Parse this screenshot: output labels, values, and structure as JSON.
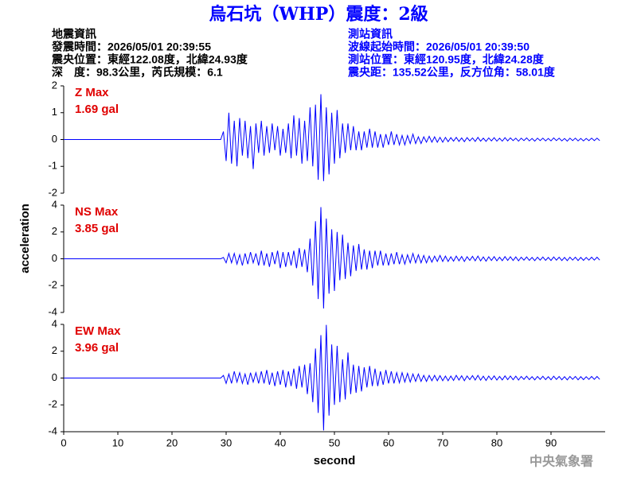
{
  "header": {
    "title": "烏石坑（WHP）震度：2級",
    "event": [
      "地震資訊",
      "發震時間：2026/05/01 20:39:55",
      "震央位置：東經122.08度，北緯24.93度",
      "深　度：98.3公里，芮氏規模：6.1"
    ],
    "station": [
      "測站資訊",
      "波線起始時間：2026/05/01 20:39:50",
      "測站位置：東經120.95度，北緯24.28度",
      "震央距：135.52公里，反方位角：58.01度"
    ],
    "footer": "中央氣象署"
  },
  "chart_data": [
    {
      "type": "line",
      "label": "Z Max",
      "max_label": "1.69 gal",
      "color": "#0000ff",
      "label_color": "#e00000",
      "xlim": [
        0,
        100
      ],
      "ylim": [
        -2,
        2
      ],
      "yticks": [
        -2,
        -1,
        0,
        1,
        2
      ],
      "x": [
        0,
        29,
        29.5,
        30,
        30.5,
        31,
        31.5,
        32,
        32.5,
        33,
        33.5,
        34,
        34.5,
        35,
        35.5,
        36,
        36.5,
        37,
        37.5,
        38,
        38.5,
        39,
        39.5,
        40,
        40.5,
        41,
        41.5,
        42,
        42.5,
        43,
        43.5,
        44,
        44.5,
        45,
        45.5,
        46,
        46.5,
        47,
        47.5,
        48,
        48.5,
        49,
        49.5,
        50,
        50.5,
        51,
        51.5,
        52,
        52.5,
        53,
        53.5,
        54,
        54.5,
        55,
        55.5,
        56,
        56.5,
        57,
        57.5,
        58,
        58.5,
        59,
        59.5,
        60,
        60.5,
        61,
        61.5,
        62,
        62.5,
        63,
        63.5,
        64,
        64.5,
        65,
        65.5,
        66,
        66.5,
        67,
        67.5,
        68,
        68.5,
        69,
        69.5,
        70,
        70.5,
        71,
        71.5,
        72,
        72.5,
        73,
        73.5,
        74,
        74.5,
        75,
        75.5,
        76,
        76.5,
        77,
        77.5,
        78,
        78.5,
        79,
        79.5,
        80,
        80.5,
        81,
        81.5,
        82,
        82.5,
        83,
        83.5,
        84,
        84.5,
        85,
        85.5,
        86,
        86.5,
        87,
        87.5,
        88,
        88.5,
        89,
        89.5,
        90,
        90.5,
        91,
        91.5,
        92,
        92.5,
        93,
        93.5,
        94,
        94.5,
        95,
        95.5,
        96,
        96.5,
        97,
        97.5,
        98,
        98.5,
        99
      ],
      "values": [
        0,
        0,
        0.3,
        -0.8,
        1.0,
        -0.9,
        0.7,
        -1.0,
        0.8,
        -0.6,
        0.7,
        -0.7,
        0.5,
        -1.1,
        0.6,
        -0.5,
        0.7,
        -0.6,
        0.5,
        -0.5,
        0.6,
        -0.4,
        0.5,
        -0.6,
        0.4,
        -0.5,
        0.6,
        -0.7,
        0.9,
        -0.6,
        0.8,
        -0.9,
        0.7,
        -0.8,
        1.2,
        -1.0,
        1.3,
        -1.5,
        1.69,
        -1.55,
        1.2,
        -1.3,
        1.0,
        -0.9,
        1.1,
        -0.7,
        0.6,
        -0.5,
        0.6,
        -0.4,
        0.5,
        -0.4,
        0.3,
        -0.4,
        0.3,
        -0.3,
        0.4,
        -0.3,
        0.3,
        -0.3,
        0.2,
        -0.3,
        0.2,
        -0.2,
        0.3,
        -0.2,
        0.2,
        -0.2,
        0.15,
        -0.2,
        0.15,
        -0.15,
        0.2,
        -0.15,
        0.1,
        -0.15,
        0.1,
        -0.1,
        0.12,
        -0.1,
        0.1,
        -0.1,
        0.08,
        -0.1,
        0.08,
        -0.08,
        0.07,
        -0.06,
        0.08,
        -0.07,
        0.06,
        -0.08,
        0.07,
        -0.05,
        0.06,
        -0.07,
        0.08,
        -0.06,
        0.05,
        -0.07,
        0.06,
        -0.05,
        0.07,
        -0.06,
        0.05,
        -0.06,
        0.07,
        -0.05,
        0.06,
        -0.04,
        0.05,
        -0.06,
        0.05,
        -0.04,
        0.06,
        -0.05,
        0.04,
        -0.06,
        0.05,
        -0.04,
        0.05,
        -0.05,
        0.04,
        -0.05,
        0.06,
        -0.04,
        0.05,
        -0.05,
        0.04,
        -0.06,
        0.05,
        -0.04,
        0.05,
        -0.05,
        0.04,
        -0.05,
        0.04,
        -0.04,
        0.05,
        -0.04,
        0.05,
        -0.04
      ]
    },
    {
      "type": "line",
      "label": "NS Max",
      "max_label": "3.85 gal",
      "color": "#0000ff",
      "label_color": "#e00000",
      "ylabel": "acceleration",
      "xlim": [
        0,
        100
      ],
      "ylim": [
        -4,
        4
      ],
      "yticks": [
        -4,
        -2,
        0,
        2,
        4
      ],
      "x": [
        0,
        29,
        29.5,
        30,
        30.5,
        31,
        31.5,
        32,
        32.5,
        33,
        33.5,
        34,
        34.5,
        35,
        35.5,
        36,
        36.5,
        37,
        37.5,
        38,
        38.5,
        39,
        39.5,
        40,
        40.5,
        41,
        41.5,
        42,
        42.5,
        43,
        43.5,
        44,
        44.5,
        45,
        45.5,
        46,
        46.5,
        47,
        47.5,
        48,
        48.5,
        49,
        49.5,
        50,
        50.5,
        51,
        51.5,
        52,
        52.5,
        53,
        53.5,
        54,
        54.5,
        55,
        55.5,
        56,
        56.5,
        57,
        57.5,
        58,
        58.5,
        59,
        59.5,
        60,
        60.5,
        61,
        61.5,
        62,
        62.5,
        63,
        63.5,
        64,
        64.5,
        65,
        65.5,
        66,
        66.5,
        67,
        67.5,
        68,
        68.5,
        69,
        69.5,
        70,
        70.5,
        71,
        71.5,
        72,
        72.5,
        73,
        73.5,
        74,
        74.5,
        75,
        75.5,
        76,
        76.5,
        77,
        77.5,
        78,
        78.5,
        79,
        79.5,
        80,
        80.5,
        81,
        81.5,
        82,
        82.5,
        83,
        83.5,
        84,
        84.5,
        85,
        85.5,
        86,
        86.5,
        87,
        87.5,
        88,
        88.5,
        89,
        89.5,
        90,
        90.5,
        91,
        91.5,
        92,
        92.5,
        93,
        93.5,
        94,
        94.5,
        95,
        95.5,
        96,
        96.5,
        97,
        97.5,
        98,
        98.5,
        99
      ],
      "values": [
        0,
        0,
        0.1,
        -0.3,
        0.4,
        -0.3,
        0.4,
        -0.4,
        0.3,
        -0.5,
        0.4,
        -0.4,
        0.5,
        -0.3,
        0.4,
        -0.5,
        0.6,
        -0.5,
        0.4,
        -0.6,
        0.5,
        -0.4,
        0.6,
        -0.7,
        0.5,
        -0.6,
        0.5,
        -0.5,
        0.6,
        -0.7,
        0.8,
        -0.6,
        0.7,
        -1.0,
        1.5,
        -2.0,
        2.8,
        -3.0,
        3.85,
        -3.7,
        3.0,
        -2.6,
        2.2,
        -2.4,
        2.0,
        -1.6,
        1.8,
        -1.5,
        1.2,
        -1.3,
        1.0,
        -0.9,
        1.1,
        -0.8,
        0.7,
        -0.8,
        0.6,
        -0.7,
        0.6,
        -0.5,
        0.6,
        -0.5,
        0.4,
        -0.5,
        0.4,
        -0.4,
        0.5,
        -0.4,
        0.3,
        -0.4,
        0.3,
        -0.3,
        0.4,
        -0.3,
        0.3,
        -0.3,
        0.25,
        -0.3,
        0.2,
        -0.25,
        0.2,
        -0.2,
        0.25,
        -0.2,
        0.2,
        -0.2,
        0.15,
        -0.18,
        0.2,
        -0.15,
        0.17,
        -0.2,
        0.15,
        -0.12,
        0.18,
        -0.15,
        0.2,
        -0.16,
        0.14,
        -0.18,
        0.15,
        -0.13,
        0.16,
        -0.15,
        0.12,
        -0.14,
        0.16,
        -0.12,
        0.15,
        -0.13,
        0.14,
        -0.15,
        0.12,
        -0.1,
        0.14,
        -0.12,
        0.1,
        -0.14,
        0.12,
        -0.1,
        0.13,
        -0.12,
        0.1,
        -0.13,
        0.14,
        -0.1,
        0.12,
        -0.13,
        0.1,
        -0.14,
        0.12,
        -0.1,
        0.12,
        -0.13,
        0.1,
        -0.12,
        0.1,
        -0.1,
        0.12,
        -0.1,
        0.12,
        -0.1
      ]
    },
    {
      "type": "line",
      "label": "EW Max",
      "max_label": "3.96 gal",
      "color": "#0000ff",
      "label_color": "#e00000",
      "xlabel": "second",
      "xlim": [
        0,
        100
      ],
      "ylim": [
        -4,
        4
      ],
      "yticks": [
        -4,
        -2,
        0,
        2,
        4
      ],
      "xticks": [
        0,
        10,
        20,
        30,
        40,
        50,
        60,
        70,
        80,
        90
      ],
      "x": [
        0,
        29,
        29.5,
        30,
        30.5,
        31,
        31.5,
        32,
        32.5,
        33,
        33.5,
        34,
        34.5,
        35,
        35.5,
        36,
        36.5,
        37,
        37.5,
        38,
        38.5,
        39,
        39.5,
        40,
        40.5,
        41,
        41.5,
        42,
        42.5,
        43,
        43.5,
        44,
        44.5,
        45,
        45.5,
        46,
        46.5,
        47,
        47.5,
        48,
        48.5,
        49,
        49.5,
        50,
        50.5,
        51,
        51.5,
        52,
        52.5,
        53,
        53.5,
        54,
        54.5,
        55,
        55.5,
        56,
        56.5,
        57,
        57.5,
        58,
        58.5,
        59,
        59.5,
        60,
        60.5,
        61,
        61.5,
        62,
        62.5,
        63,
        63.5,
        64,
        64.5,
        65,
        65.5,
        66,
        66.5,
        67,
        67.5,
        68,
        68.5,
        69,
        69.5,
        70,
        70.5,
        71,
        71.5,
        72,
        72.5,
        73,
        73.5,
        74,
        74.5,
        75,
        75.5,
        76,
        76.5,
        77,
        77.5,
        78,
        78.5,
        79,
        79.5,
        80,
        80.5,
        81,
        81.5,
        82,
        82.5,
        83,
        83.5,
        84,
        84.5,
        85,
        85.5,
        86,
        86.5,
        87,
        87.5,
        88,
        88.5,
        89,
        89.5,
        90,
        90.5,
        91,
        91.5,
        92,
        92.5,
        93,
        93.5,
        94,
        94.5,
        95,
        95.5,
        96,
        96.5,
        97,
        97.5,
        98,
        98.5,
        99
      ],
      "values": [
        0,
        0,
        0.2,
        -0.4,
        0.3,
        -0.4,
        0.5,
        -0.3,
        0.4,
        -0.4,
        0.3,
        -0.5,
        0.4,
        -0.3,
        0.4,
        -0.4,
        0.5,
        -0.4,
        0.6,
        -0.5,
        0.4,
        -0.6,
        0.5,
        -0.5,
        0.6,
        -0.7,
        0.5,
        -0.6,
        0.7,
        -0.8,
        0.9,
        -0.7,
        1.0,
        -1.2,
        1.1,
        -1.8,
        2.2,
        -2.6,
        3.2,
        -3.9,
        3.96,
        -2.8,
        2.5,
        -2.0,
        2.4,
        -1.8,
        1.4,
        -1.6,
        1.9,
        -1.2,
        1.0,
        -1.1,
        0.9,
        -1.0,
        0.8,
        -0.7,
        0.9,
        -0.6,
        0.7,
        -0.6,
        0.5,
        -0.5,
        0.6,
        -0.4,
        0.5,
        -0.4,
        0.4,
        -0.35,
        0.4,
        -0.3,
        0.35,
        -0.3,
        0.3,
        -0.25,
        0.3,
        -0.25,
        0.2,
        -0.25,
        0.2,
        -0.2,
        0.2,
        -0.2,
        0.18,
        -0.2,
        0.15,
        -0.2,
        0.15,
        -0.18,
        0.2,
        -0.15,
        0.17,
        -0.2,
        0.15,
        -0.12,
        0.18,
        -0.15,
        0.2,
        -0.16,
        0.14,
        -0.18,
        0.15,
        -0.13,
        0.16,
        -0.15,
        0.12,
        -0.14,
        0.16,
        -0.12,
        0.15,
        -0.13,
        0.14,
        -0.15,
        0.12,
        -0.1,
        0.14,
        -0.12,
        0.1,
        -0.14,
        0.12,
        -0.1,
        0.13,
        -0.12,
        0.1,
        -0.13,
        0.14,
        -0.1,
        0.12,
        -0.13,
        0.1,
        -0.14,
        0.12,
        -0.1,
        0.12,
        -0.13,
        0.1,
        -0.12,
        0.1,
        -0.1,
        0.12,
        -0.1,
        0.12,
        -0.1
      ]
    }
  ]
}
